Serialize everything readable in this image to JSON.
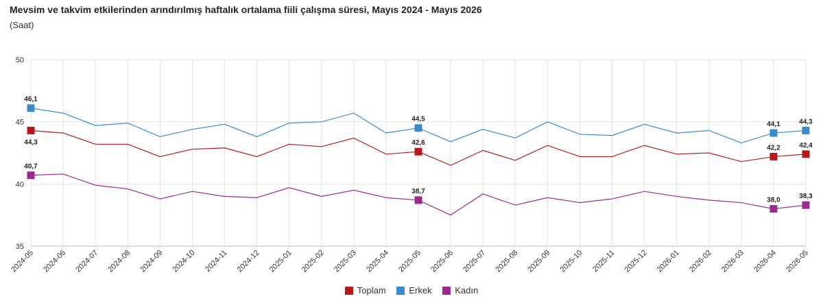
{
  "chart_data": {
    "type": "line",
    "title": "Mevsim ve takvim etkilerinden arındırılmış haftalık ortalama fiili çalışma süresi, Mayıs 2024 - Mayıs 2026",
    "subtitle": "(Saat)",
    "categories": [
      "2024-05",
      "2024-06",
      "2024-07",
      "2024-08",
      "2024-09",
      "2024-10",
      "2024-11",
      "2024-12",
      "2025-01",
      "2025-02",
      "2025-03",
      "2025-04",
      "2025-05",
      "2025-06",
      "2025-07",
      "2025-08",
      "2025-09",
      "2025-10",
      "2025-11",
      "2025-12",
      "2026-01",
      "2026-02",
      "2026-03",
      "2026-04",
      "2026-05"
    ],
    "ylim": [
      35,
      50
    ],
    "yticks": [
      "35",
      "40",
      "45",
      "50"
    ],
    "grid": true,
    "legend_position": "bottom",
    "series": [
      {
        "name": "Toplam",
        "color": "#b5191d",
        "values": [
          44.3,
          44.1,
          43.2,
          43.2,
          42.2,
          42.8,
          42.9,
          42.2,
          43.2,
          43.0,
          43.7,
          42.4,
          42.6,
          41.5,
          42.7,
          41.9,
          43.1,
          42.2,
          42.2,
          43.1,
          42.4,
          42.5,
          41.8,
          42.2,
          42.4
        ],
        "labels": [
          "44,3",
          "",
          "",
          "",
          "",
          "",
          "",
          "",
          "",
          "",
          "",
          "",
          "42,6",
          "",
          "",
          "",
          "",
          "",
          "",
          "",
          "",
          "",
          "",
          "42,2",
          "42,4"
        ]
      },
      {
        "name": "Erkek",
        "color": "#3a8ccc",
        "values": [
          46.1,
          45.7,
          44.7,
          44.9,
          43.8,
          44.4,
          44.8,
          43.8,
          44.9,
          45.0,
          45.7,
          44.1,
          44.5,
          43.4,
          44.4,
          43.7,
          45.0,
          44.0,
          43.9,
          44.8,
          44.1,
          44.3,
          43.3,
          44.1,
          44.3
        ],
        "labels": [
          "46,1",
          "",
          "",
          "",
          "",
          "",
          "",
          "",
          "",
          "",
          "",
          "",
          "44,5",
          "",
          "",
          "",
          "",
          "",
          "",
          "",
          "",
          "",
          "",
          "44,1",
          "44,3"
        ]
      },
      {
        "name": "Kadın",
        "color": "#9b2a8f",
        "values": [
          40.7,
          40.8,
          39.9,
          39.6,
          38.8,
          39.4,
          39.0,
          38.9,
          39.7,
          39.0,
          39.5,
          38.9,
          38.7,
          37.5,
          39.2,
          38.3,
          38.9,
          38.5,
          38.8,
          39.4,
          39.0,
          38.7,
          38.5,
          38.0,
          38.3
        ],
        "labels": [
          "40,7",
          "",
          "",
          "",
          "",
          "",
          "",
          "",
          "",
          "",
          "",
          "",
          "38,7",
          "",
          "",
          "",
          "",
          "",
          "",
          "",
          "",
          "",
          "",
          "38,0",
          "38,3"
        ]
      }
    ]
  }
}
